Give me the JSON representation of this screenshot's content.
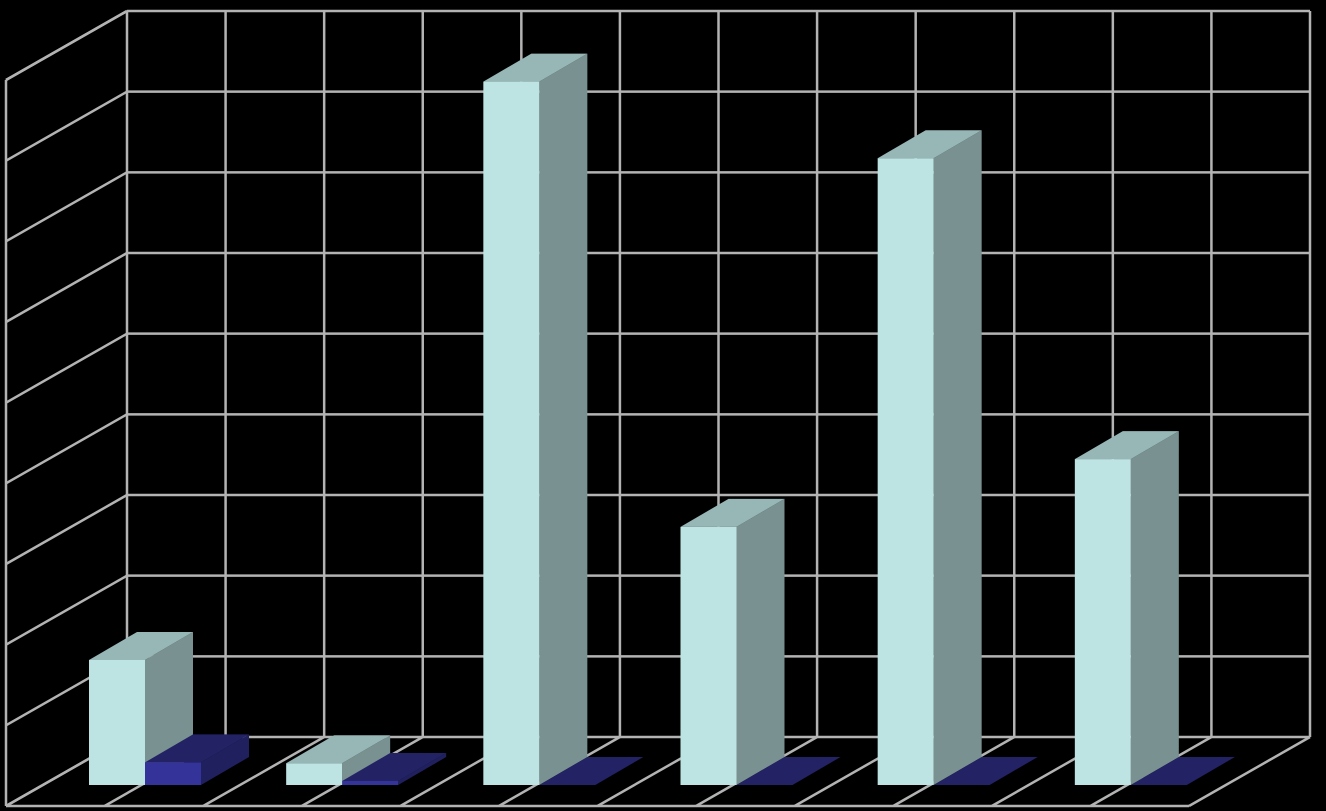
{
  "chart_data": {
    "type": "bar",
    "style": "3d-clustered-column",
    "categories": [
      "",
      "",
      "",
      "",
      "",
      ""
    ],
    "series": [
      {
        "color": "#bde3e3",
        "values": [
          1.55,
          0.27,
          8.72,
          3.2,
          7.77,
          4.04
        ]
      },
      {
        "color": "#343399",
        "values": [
          0.28,
          0.05,
          0.0,
          0.0,
          0.0,
          0.0
        ]
      }
    ],
    "ylim": [
      0,
      9
    ],
    "grid": true,
    "legend": "none",
    "colors": {
      "background": "#000000",
      "grid": "#b3b3b3"
    }
  }
}
